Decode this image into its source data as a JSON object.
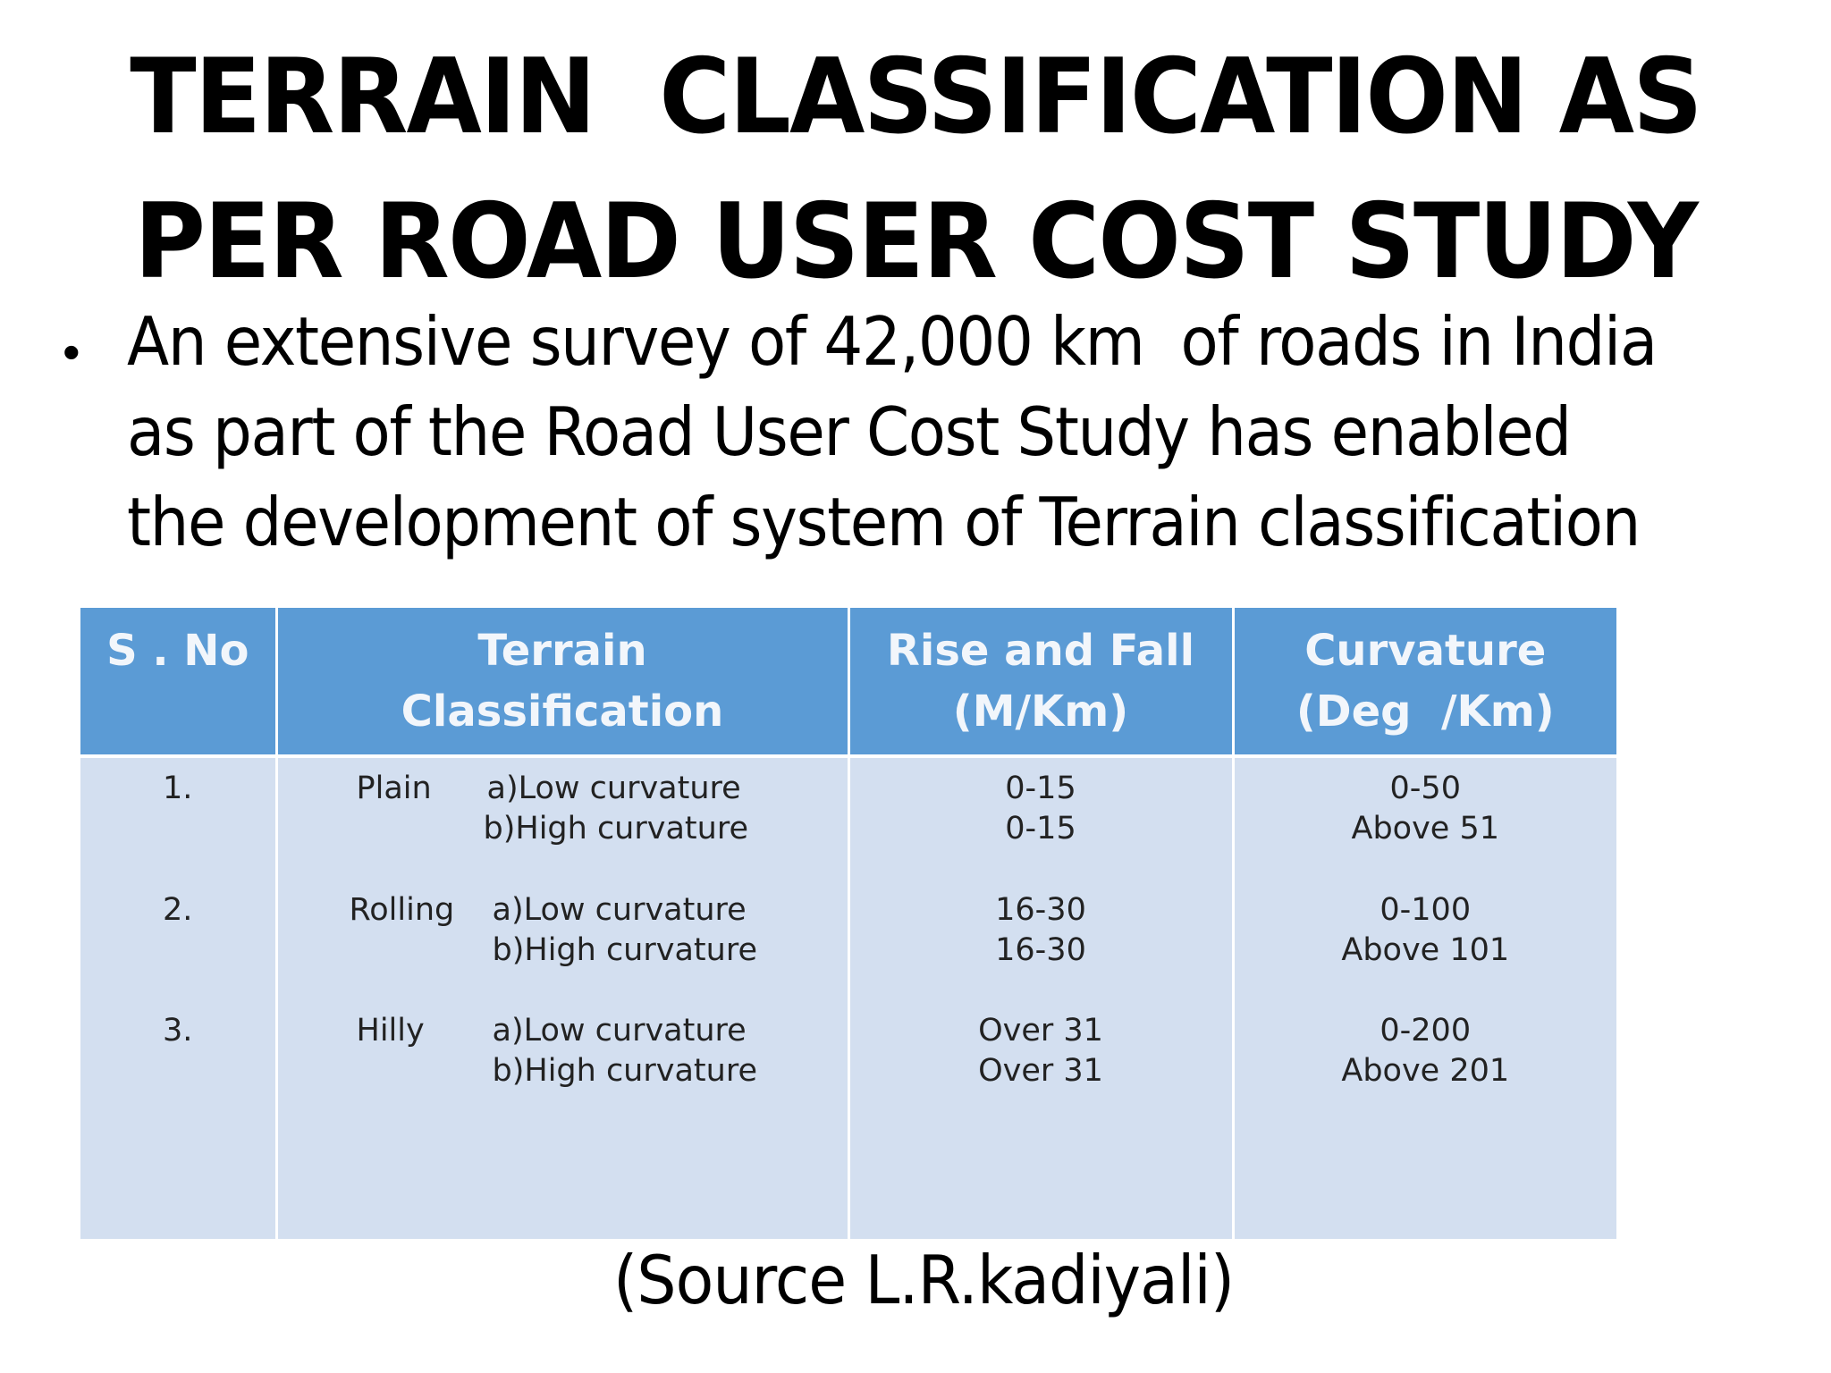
{
  "title": {
    "line1": "TERRAIN  CLASSIFICATION AS",
    "line2": "PER ROAD USER COST STUDY"
  },
  "bullet": {
    "symbol": "•",
    "lines": [
      "An extensive survey of 42,000 km  of roads in India",
      "as part of the Road User Cost Study has enabled",
      "the development of system of Terrain classification"
    ]
  },
  "table": {
    "header_bg": "#5b9bd5",
    "body_bg": "#d3dff0",
    "headers": [
      {
        "line1": "S . No",
        "line2": ""
      },
      {
        "line1": "Terrain",
        "line2": "Classification"
      },
      {
        "line1": "Rise and Fall",
        "line2": "(M/Km)"
      },
      {
        "line1": "Curvature",
        "line2": "(Deg  /Km)"
      }
    ],
    "rows": [
      {
        "sno": "1.",
        "terrain": "Plain",
        "sub_a": "a)Low curvature",
        "sub_b": "b)High curvature",
        "rise_fall_a": "0-15",
        "rise_fall_b": "0-15",
        "curvature_a": "0-50",
        "curvature_b": "Above 51"
      },
      {
        "sno": "2.",
        "terrain": "Rolling",
        "sub_a": "a)Low curvature",
        "sub_b": "b)High curvature",
        "rise_fall_a": "16-30",
        "rise_fall_b": "16-30",
        "curvature_a": "0-100",
        "curvature_b": "Above 101"
      },
      {
        "sno": "3.",
        "terrain": "Hilly",
        "sub_a": "a)Low curvature",
        "sub_b": "b)High curvature",
        "rise_fall_a": "Over 31",
        "rise_fall_b": "Over 31",
        "curvature_a": "0-200",
        "curvature_b": "Above 201"
      }
    ]
  },
  "source": "(Source L.R.kadiyali)"
}
